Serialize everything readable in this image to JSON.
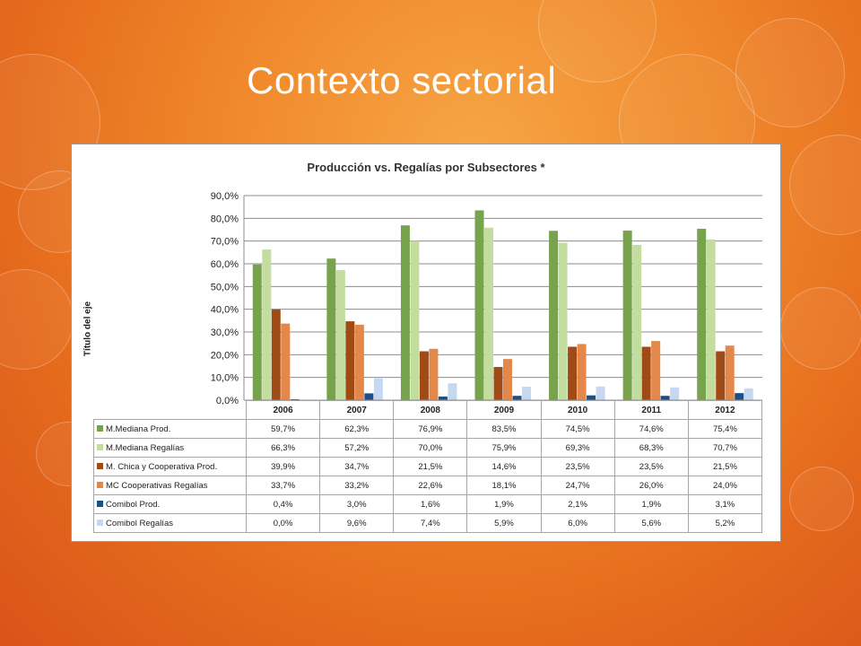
{
  "slide": {
    "title": "Contexto sectorial"
  },
  "chart_data": {
    "type": "bar",
    "title": "Producción vs. Regalías por Subsectores *",
    "xlabel": "",
    "ylabel": "Título del eje",
    "ylim": [
      0,
      90
    ],
    "y_ticks": [
      "0,0%",
      "10,0%",
      "20,0%",
      "30,0%",
      "40,0%",
      "50,0%",
      "60,0%",
      "70,0%",
      "80,0%",
      "90,0%"
    ],
    "grid": true,
    "legend": "data-table-below",
    "categories": [
      "2006",
      "2007",
      "2008",
      "2009",
      "2010",
      "2011",
      "2012"
    ],
    "series": [
      {
        "name": "M.Mediana Prod.",
        "color": "#77a34d",
        "values": [
          59.7,
          62.3,
          76.9,
          83.5,
          74.5,
          74.6,
          75.4
        ],
        "labels": [
          "59,7%",
          "62,3%",
          "76,9%",
          "83,5%",
          "74,5%",
          "74,6%",
          "75,4%"
        ]
      },
      {
        "name": "M.Mediana Regalías",
        "color": "#c3dd9f",
        "values": [
          66.3,
          57.2,
          70.0,
          75.9,
          69.3,
          68.3,
          70.7
        ],
        "labels": [
          "66,3%",
          "57,2%",
          "70,0%",
          "75,9%",
          "69,3%",
          "68,3%",
          "70,7%"
        ]
      },
      {
        "name": "M. Chica y Cooperativa Prod.",
        "color": "#a04b16",
        "values": [
          39.9,
          34.7,
          21.5,
          14.6,
          23.5,
          23.5,
          21.5
        ],
        "labels": [
          "39,9%",
          "34,7%",
          "21,5%",
          "14,6%",
          "23,5%",
          "23,5%",
          "21,5%"
        ]
      },
      {
        "name": "MC Cooperativas Regalías",
        "color": "#e3874a",
        "values": [
          33.7,
          33.2,
          22.6,
          18.1,
          24.7,
          26.0,
          24.0
        ],
        "labels": [
          "33,7%",
          "33,2%",
          "22,6%",
          "18,1%",
          "24,7%",
          "26,0%",
          "24,0%"
        ]
      },
      {
        "name": "Comibol Prod.",
        "color": "#1f4e86",
        "values": [
          0.4,
          3.0,
          1.6,
          1.9,
          2.1,
          1.9,
          3.1
        ],
        "labels": [
          "0,4%",
          "3,0%",
          "1,6%",
          "1,9%",
          "2,1%",
          "1,9%",
          "3,1%"
        ]
      },
      {
        "name": "Comibol Regalías",
        "color": "#c5d8f0",
        "values": [
          0.0,
          9.6,
          7.4,
          5.9,
          6.0,
          5.6,
          5.2
        ],
        "labels": [
          "0,0%",
          "9,6%",
          "7,4%",
          "5,9%",
          "6,0%",
          "5,6%",
          "5,2%"
        ]
      }
    ]
  }
}
